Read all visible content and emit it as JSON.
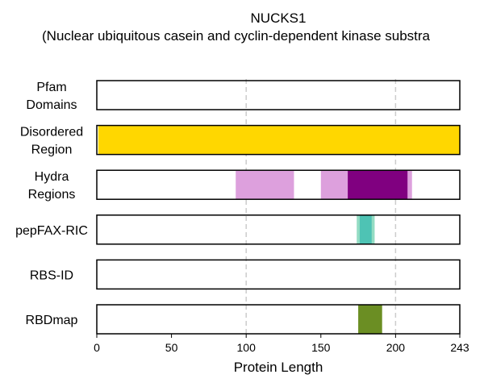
{
  "chart_data": {
    "type": "bar",
    "title_line1": "NUCKS1",
    "title_line2": "(Nuclear ubiquitous casein and cyclin-dependent kinase substra",
    "xlabel": "Protein Length",
    "xlim": [
      0,
      243
    ],
    "xticks": [
      0,
      50,
      100,
      150,
      200,
      243
    ],
    "gridlines": [
      100,
      200
    ],
    "grid": "dashed vertical lines at 100 and 200",
    "tracks": [
      {
        "label_lines": [
          "Pfam",
          "Domains"
        ],
        "segments": []
      },
      {
        "label_lines": [
          "Disordered",
          "Region"
        ],
        "segments": [
          {
            "start": 1,
            "end": 243,
            "color": "#FFD700",
            "opacity": 1.0
          }
        ]
      },
      {
        "label_lines": [
          "Hydra",
          "Regions"
        ],
        "segments": [
          {
            "start": 93,
            "end": 132,
            "color": "#DDA0DD",
            "opacity": 1.0
          },
          {
            "start": 150,
            "end": 211,
            "color": "#DDA0DD",
            "opacity": 1.0
          },
          {
            "start": 168,
            "end": 208,
            "color": "#800080",
            "opacity": 1.0
          }
        ]
      },
      {
        "label_lines": [
          "pepFAX-RIC"
        ],
        "segments": [
          {
            "start": 174,
            "end": 186,
            "color": "#66CDAA",
            "opacity": 0.7
          },
          {
            "start": 176,
            "end": 184,
            "color": "#20B2AA",
            "opacity": 0.6
          }
        ]
      },
      {
        "label_lines": [
          "RBS-ID"
        ],
        "segments": []
      },
      {
        "label_lines": [
          "RBDmap"
        ],
        "segments": [
          {
            "start": 175,
            "end": 191,
            "color": "#6B8E23",
            "opacity": 1.0
          }
        ]
      }
    ]
  }
}
